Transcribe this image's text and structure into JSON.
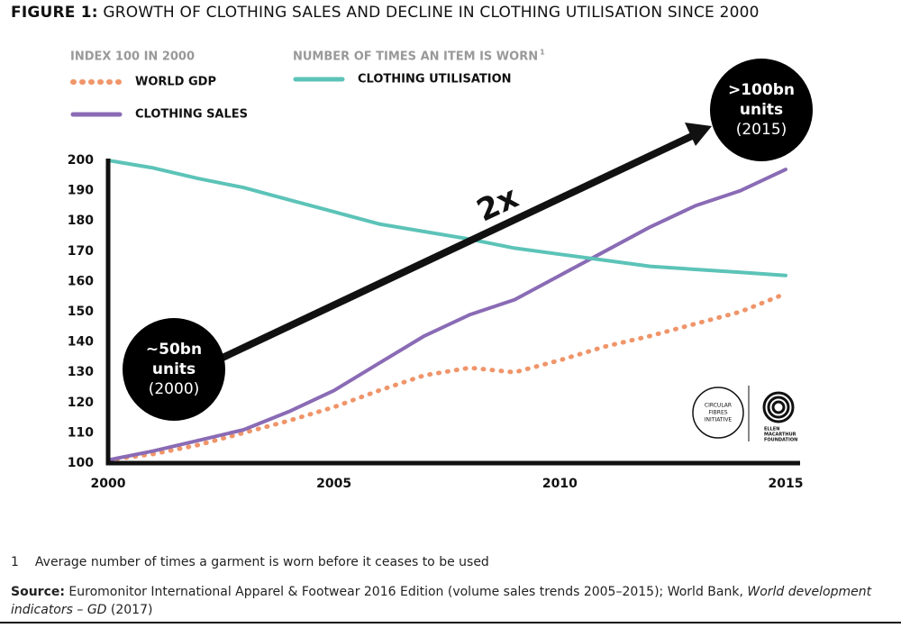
{
  "chart_data": {
    "type": "line",
    "title_prefix": "FIGURE 1:",
    "title": "GROWTH OF CLOTHING SALES AND DECLINE IN CLOTHING UTILISATION SINCE 2000",
    "legend_headers": [
      "INDEX 100 IN 2000",
      "NUMBER OF TIMES AN ITEM IS WORN"
    ],
    "legend_header_note": "1",
    "x": [
      2000,
      2001,
      2002,
      2003,
      2004,
      2005,
      2006,
      2007,
      2008,
      2009,
      2010,
      2011,
      2012,
      2013,
      2014,
      2015
    ],
    "series": [
      {
        "name": "WORLD GDP",
        "color": "#f0956a",
        "dashed": true,
        "values": [
          101,
          103,
          106,
          110,
          114,
          118.5,
          124,
          129,
          131.5,
          130,
          134,
          138.5,
          142,
          146,
          150,
          156
        ]
      },
      {
        "name": "CLOTHING SALES",
        "color": "#8a6bb5",
        "dashed": false,
        "values": [
          101,
          104,
          107.5,
          111,
          117,
          124,
          133,
          142,
          149,
          154,
          162,
          170,
          178,
          185,
          190,
          197
        ]
      },
      {
        "name": "CLOTHING UTILISATION",
        "color": "#5cc3b8",
        "dashed": false,
        "values": [
          200,
          197.5,
          194,
          191,
          187,
          183,
          179,
          176.5,
          174,
          171,
          169,
          167,
          165,
          164,
          163,
          162
        ]
      }
    ],
    "xlim": [
      2000,
      2015
    ],
    "xticks": [
      2000,
      2005,
      2010,
      2015
    ],
    "ylim": [
      100,
      200
    ],
    "yticks": [
      100,
      110,
      120,
      130,
      140,
      150,
      160,
      170,
      180,
      190,
      200
    ],
    "grid": false,
    "annotations": [
      {
        "lines": [
          "~50bn",
          "units",
          "(2000)"
        ]
      },
      {
        "lines": [
          ">100bn",
          "units",
          "(2015)"
        ]
      },
      {
        "text": "2x"
      }
    ],
    "logos": [
      [
        "CIRCULAR",
        "FIBRES",
        "INITIATIVE"
      ],
      [
        "ELLEN",
        "MACARTHUR",
        "FOUNDATION"
      ]
    ]
  },
  "footnote": {
    "marker": "1",
    "text": "Average number of times a garment is worn before it ceases to be used"
  },
  "source": {
    "label": "Source:",
    "text": "Euromonitor International Apparel & Footwear 2016 Edition (volume sales trends 2005–2015); World Bank, ",
    "italic": "World development indicators – GD",
    "end": " (2017)"
  }
}
